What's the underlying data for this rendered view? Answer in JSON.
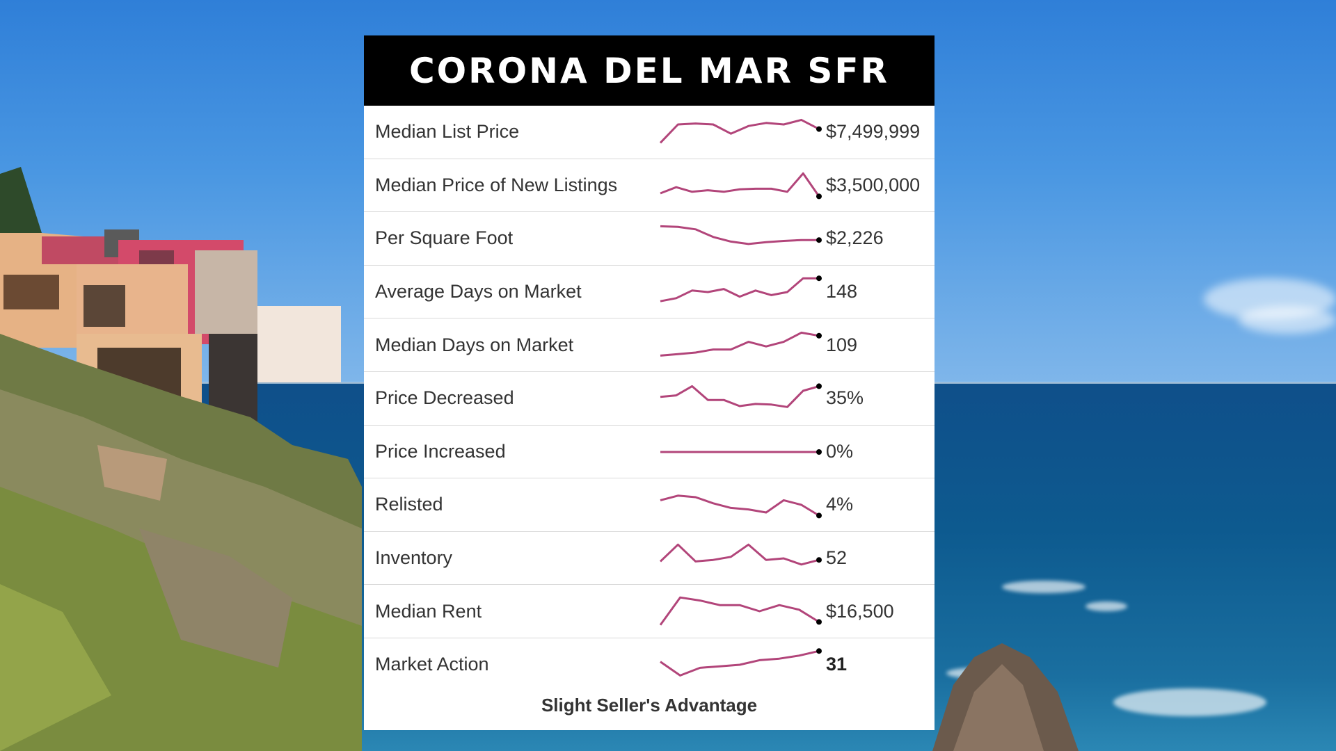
{
  "title": "CORONA DEL MAR SFR",
  "rows": [
    {
      "label": "Median List Price",
      "value": "$7,499,999",
      "trend": [
        0.85,
        0.25,
        0.22,
        0.25,
        0.55,
        0.3,
        0.2,
        0.25,
        0.1,
        0.4
      ]
    },
    {
      "label": "Median Price of New Listings",
      "value": "$3,500,000",
      "trend": [
        0.75,
        0.55,
        0.7,
        0.65,
        0.7,
        0.62,
        0.6,
        0.6,
        0.7,
        0.1,
        0.85
      ]
    },
    {
      "label": "Per Square Foot",
      "value": "$2,226",
      "trend": [
        0.1,
        0.12,
        0.2,
        0.45,
        0.6,
        0.68,
        0.62,
        0.58,
        0.55,
        0.55
      ]
    },
    {
      "label": "Average Days on Market",
      "value": "148",
      "trend": [
        0.8,
        0.7,
        0.45,
        0.5,
        0.4,
        0.65,
        0.45,
        0.6,
        0.5,
        0.05,
        0.05
      ]
    },
    {
      "label": "Median Days on Market",
      "value": "109",
      "trend": [
        0.85,
        0.8,
        0.75,
        0.65,
        0.65,
        0.4,
        0.55,
        0.4,
        0.1,
        0.2
      ]
    },
    {
      "label": "Price Decreased",
      "value": "35%",
      "trend": [
        0.45,
        0.4,
        0.1,
        0.55,
        0.55,
        0.75,
        0.68,
        0.7,
        0.78,
        0.25,
        0.1
      ]
    },
    {
      "label": "Price Increased",
      "value": "0%",
      "trend": [
        0.5,
        0.5,
        0.5,
        0.5,
        0.5,
        0.5,
        0.5,
        0.5,
        0.5,
        0.5
      ]
    },
    {
      "label": "Relisted",
      "value": "4%",
      "trend": [
        0.35,
        0.2,
        0.25,
        0.45,
        0.6,
        0.65,
        0.75,
        0.35,
        0.5,
        0.85
      ]
    },
    {
      "label": "Inventory",
      "value": "52",
      "trend": [
        0.6,
        0.05,
        0.6,
        0.55,
        0.45,
        0.05,
        0.55,
        0.5,
        0.7,
        0.55
      ]
    },
    {
      "label": "Median Rent",
      "value": "$16,500",
      "trend": [
        0.95,
        0.05,
        0.15,
        0.3,
        0.3,
        0.5,
        0.3,
        0.45,
        0.85
      ]
    },
    {
      "label": "Market Action",
      "value": "31",
      "bold": true,
      "trend": [
        0.4,
        0.85,
        0.6,
        0.55,
        0.5,
        0.35,
        0.3,
        0.2,
        0.05
      ]
    }
  ],
  "footer": "Slight Seller's Advantage",
  "colors": {
    "sparkline": "#b2457a",
    "header_bg": "#000000",
    "card_bg": "#ffffff"
  }
}
